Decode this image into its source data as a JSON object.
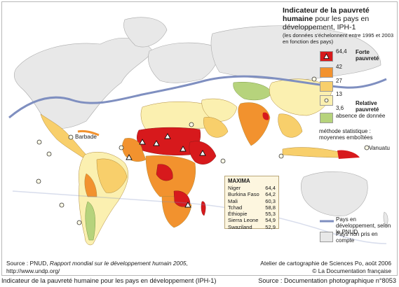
{
  "legend": {
    "title_bold": "Indicateur de la pauvreté humaine",
    "title_rest": " pour les pays en développement, IPH-1",
    "note": "(les données s'échelonnent entre 1995 et 2003 en fonction des pays)",
    "values": [
      "64,4",
      "42",
      "27",
      "13",
      "3,6"
    ],
    "strong_label": "Forte pauvreté",
    "relative_label": "Relative pauvreté",
    "no_data": "absence de donnée",
    "method": "méthode statistique : moyennes emboîtées",
    "line_label": "Pays en développement, selon le PNUD",
    "not_counted": "Pays non pris en compte"
  },
  "colors": {
    "class1": "#d7191c",
    "class2": "#f2922e",
    "class3": "#f8cf6b",
    "class4": "#fbf0b0",
    "class5": "#fffbe6",
    "no_data": "#b6d37c",
    "excluded": "#e8e8e8",
    "line": "#7f8fc0"
  },
  "maxima": {
    "title": "MAXIMA",
    "rows": [
      {
        "country": "Niger",
        "value": "64,4"
      },
      {
        "country": "Burkina Faso",
        "value": "64,2"
      },
      {
        "country": "Mali",
        "value": "60,3"
      },
      {
        "country": "Tchad",
        "value": "58,8"
      },
      {
        "country": "Éthiopie",
        "value": "55,3"
      },
      {
        "country": "Sierra Leone",
        "value": "54,9"
      },
      {
        "country": "Swaziland",
        "value": "52,9"
      }
    ]
  },
  "labels": {
    "barbade": "Barbade",
    "vanuatu": "Vanuatu"
  },
  "footer": {
    "source_prefix": "Source : PNUD, ",
    "source_title": "Rapport mondial sur le développement humain 2005",
    "source_suffix": ",",
    "url": "http://www.undp.org/",
    "atelier": "Atelier de cartographie de Sciences Po, août 2006",
    "copyright": "© La Documentation française"
  },
  "caption": {
    "left": "Indicateur de la pauvreté humaine pour les pays en développement (IPH-1)",
    "right": "Source : Documentation photographique n°8053"
  }
}
